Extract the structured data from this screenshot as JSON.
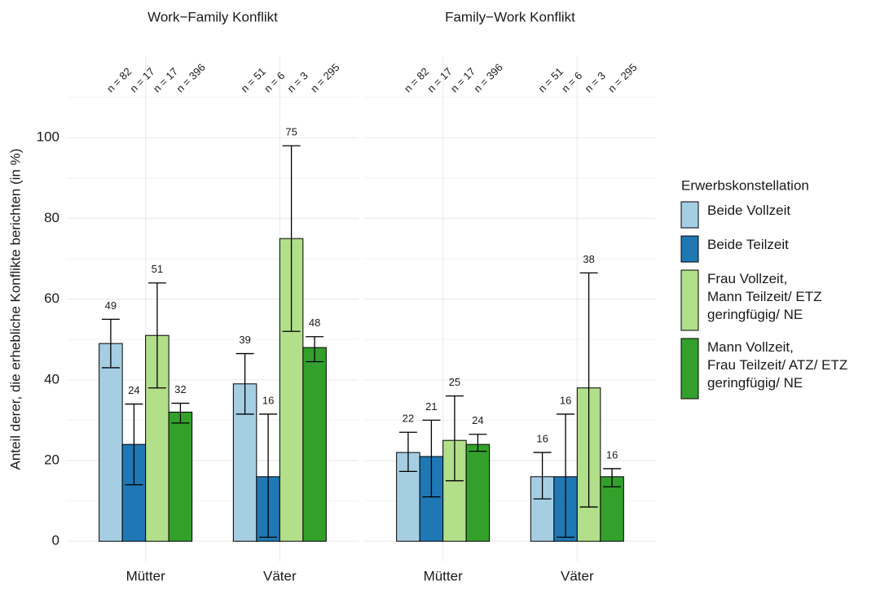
{
  "chart_data": [
    {
      "type": "bar",
      "title": "Work−Family Konflikt",
      "ylabel": "Anteil derer, die erhebliche Konflikte berichten (in %)",
      "legend_title": "Erwerbskonstellation",
      "categories": [
        "Mütter",
        "Väter"
      ],
      "ylim": [
        -5,
        120
      ],
      "yticks": [
        0,
        20,
        40,
        60,
        80,
        100
      ],
      "yminor": [
        10,
        30,
        50,
        70,
        90,
        110
      ],
      "grid": true,
      "series": [
        {
          "name": "Beide Vollzeit",
          "color": "#a6cee3",
          "values": [
            49,
            39
          ],
          "error_low": [
            43,
            31.5
          ],
          "error_high": [
            55,
            46.5
          ],
          "n_labels": [
            "n = 82",
            "n = 51"
          ]
        },
        {
          "name": "Beide Teilzeit",
          "color": "#1f78b4",
          "values": [
            24,
            16
          ],
          "error_low": [
            14,
            1
          ],
          "error_high": [
            34,
            31.5
          ],
          "n_labels": [
            "n = 17",
            "n = 6"
          ]
        },
        {
          "name": "Frau Vollzeit,\nMann Teilzeit/ ETZ\ngeringfügig/ NE",
          "color": "#b2df8a",
          "values": [
            51,
            75
          ],
          "error_low": [
            38,
            52
          ],
          "error_high": [
            64,
            98
          ],
          "n_labels": [
            "n = 17",
            "n = 3"
          ]
        },
        {
          "name": "Mann Vollzeit,\nFrau Teilzeit/ ATZ/ ETZ\ngeringfügig/ NE",
          "color": "#33a02c",
          "values": [
            32,
            48
          ],
          "error_low": [
            29.3,
            44.5
          ],
          "error_high": [
            34.2,
            50.7
          ],
          "n_labels": [
            "n = 396",
            "n = 295"
          ]
        }
      ]
    },
    {
      "type": "bar",
      "title": "Family−Work Konflikt",
      "categories": [
        "Mütter",
        "Väter"
      ],
      "ylim": [
        -5,
        120
      ],
      "yticks": [
        0,
        20,
        40,
        60,
        80,
        100
      ],
      "yminor": [
        10,
        30,
        50,
        70,
        90,
        110
      ],
      "grid": true,
      "series": [
        {
          "name": "Beide Vollzeit",
          "color": "#a6cee3",
          "values": [
            22,
            16
          ],
          "error_low": [
            17.3,
            10.5
          ],
          "error_high": [
            27,
            22
          ],
          "n_labels": [
            "n = 82",
            "n = 51"
          ]
        },
        {
          "name": "Beide Teilzeit",
          "color": "#1f78b4",
          "values": [
            21,
            16
          ],
          "error_low": [
            11,
            1
          ],
          "error_high": [
            30,
            31.5
          ],
          "n_labels": [
            "n = 17",
            "n = 6"
          ]
        },
        {
          "name": "Frau Vollzeit,\nMann Teilzeit/ ETZ\ngeringfügig/ NE",
          "color": "#b2df8a",
          "values": [
            25,
            38
          ],
          "error_low": [
            15,
            8.5
          ],
          "error_high": [
            36,
            66.5
          ],
          "n_labels": [
            "n = 17",
            "n = 3"
          ]
        },
        {
          "name": "Mann Vollzeit,\nFrau Teilzeit/ ATZ/ ETZ\ngeringfügig/ NE",
          "color": "#33a02c",
          "values": [
            24,
            16
          ],
          "error_low": [
            22.3,
            13.5
          ],
          "error_high": [
            26.5,
            18
          ],
          "n_labels": [
            "n = 396",
            "n = 295"
          ]
        }
      ]
    }
  ]
}
